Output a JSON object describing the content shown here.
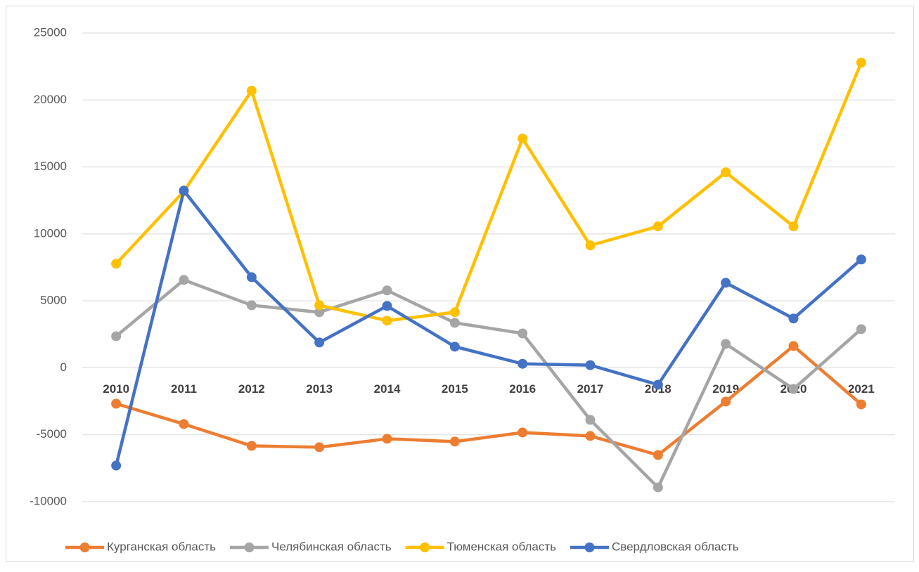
{
  "chart_data": {
    "type": "line",
    "categories": [
      "2010",
      "2011",
      "2012",
      "2013",
      "2014",
      "2015",
      "2016",
      "2017",
      "2018",
      "2019",
      "2020",
      "2021"
    ],
    "series": [
      {
        "name": "Курганская область",
        "color": "#ED7D31",
        "values": [
          -2680,
          -4200,
          -5830,
          -5930,
          -5300,
          -5510,
          -4830,
          -5090,
          -6510,
          -2520,
          1630,
          -2730
        ]
      },
      {
        "name": "Челябинская область",
        "color": "#A5A5A5",
        "values": [
          2360,
          6560,
          4670,
          4150,
          5780,
          3360,
          2570,
          -3890,
          -8930,
          1790,
          -1580,
          2890
        ]
      },
      {
        "name": "Тюменская область",
        "color": "#FFC000",
        "values": [
          7770,
          13180,
          20690,
          4670,
          3520,
          4150,
          17120,
          9140,
          10560,
          14600,
          10560,
          22790
        ]
      },
      {
        "name": "Свердловская область",
        "color": "#4472C4",
        "values": [
          -7300,
          13230,
          6770,
          1890,
          4620,
          1580,
          300,
          200,
          -1260,
          6350,
          3680,
          8090
        ]
      }
    ],
    "ylim": [
      -10000,
      25000
    ],
    "yticks": [
      -10000,
      -5000,
      0,
      5000,
      10000,
      15000,
      20000,
      25000
    ],
    "grid": true,
    "legend": "bottom"
  }
}
